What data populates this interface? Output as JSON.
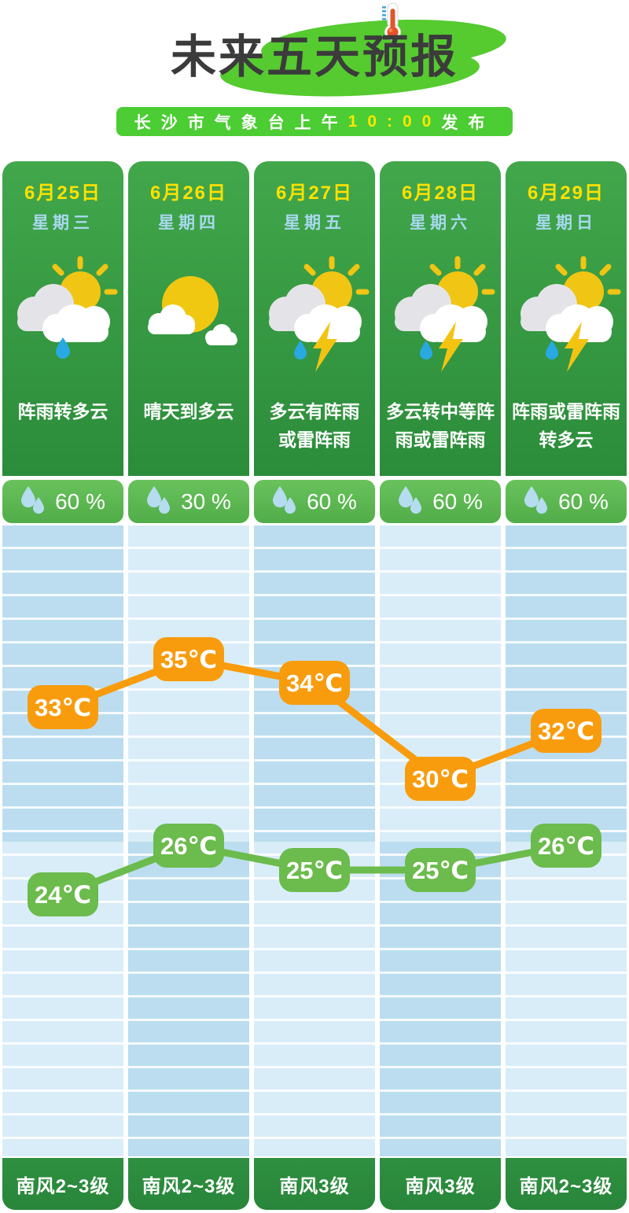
{
  "header": {
    "title": "未来五天预报",
    "subtitle_prefix": "长沙市气象台上午",
    "subtitle_time": "10:00",
    "subtitle_suffix": "发布"
  },
  "days": [
    {
      "date": "6月25日",
      "weekday": "星期三",
      "icon": "sun-behind-rain-cloud",
      "desc": "阵雨转多云",
      "humidity": "60 %",
      "wind": "南风2~3级"
    },
    {
      "date": "6月26日",
      "weekday": "星期四",
      "icon": "sun-with-clouds",
      "desc": "晴天到多云",
      "humidity": "30 %",
      "wind": "南风2~3级"
    },
    {
      "date": "6月27日",
      "weekday": "星期五",
      "icon": "thunderstorm",
      "desc": "多云有阵雨\n或雷阵雨",
      "humidity": "60 %",
      "wind": "南风3级"
    },
    {
      "date": "6月28日",
      "weekday": "星期六",
      "icon": "thunderstorm",
      "desc": "多云转中等阵\n雨或雷阵雨",
      "humidity": "60 %",
      "wind": "南风3级"
    },
    {
      "date": "6月29日",
      "weekday": "星期日",
      "icon": "thunderstorm",
      "desc": "阵雨或雷阵雨\n转多云",
      "humidity": "60 %",
      "wind": "南风2~3级"
    }
  ],
  "chart_data": {
    "type": "line",
    "categories": [
      "6月25日",
      "6月26日",
      "6月27日",
      "6月28日",
      "6月29日"
    ],
    "series": [
      {
        "name": "high",
        "color": "#f89c0e",
        "values": [
          33,
          35,
          34,
          30,
          32
        ]
      },
      {
        "name": "low",
        "color": "#6cbb4d",
        "values": [
          24,
          26,
          25,
          25,
          26
        ]
      }
    ],
    "unit": "℃",
    "grid": "horizontal-stripes",
    "legend": "none",
    "label_style": "rounded-badge"
  },
  "colors": {
    "title_text": "#3b3b3b",
    "title_blob_green": "#55cb2f",
    "subtitle_bar_green": "#4bcd33",
    "subtitle_time_yellow": "#ffe600",
    "card_green_top": "#42a74b",
    "card_green_bottom": "#2b8c3a",
    "humidity_green": "#5cb953",
    "wind_green": "#2e8b3a",
    "date_yellow": "#ffe100",
    "weekday_blue": "#a8d8ef",
    "chart_blue_dark": "#bbddef",
    "chart_blue_light": "#d9edf8",
    "high_line_orange": "#f89c0e",
    "low_line_green": "#6cbb4d",
    "rain_drop_blue": "#29a9e1",
    "sun_yellow": "#f1c513"
  }
}
